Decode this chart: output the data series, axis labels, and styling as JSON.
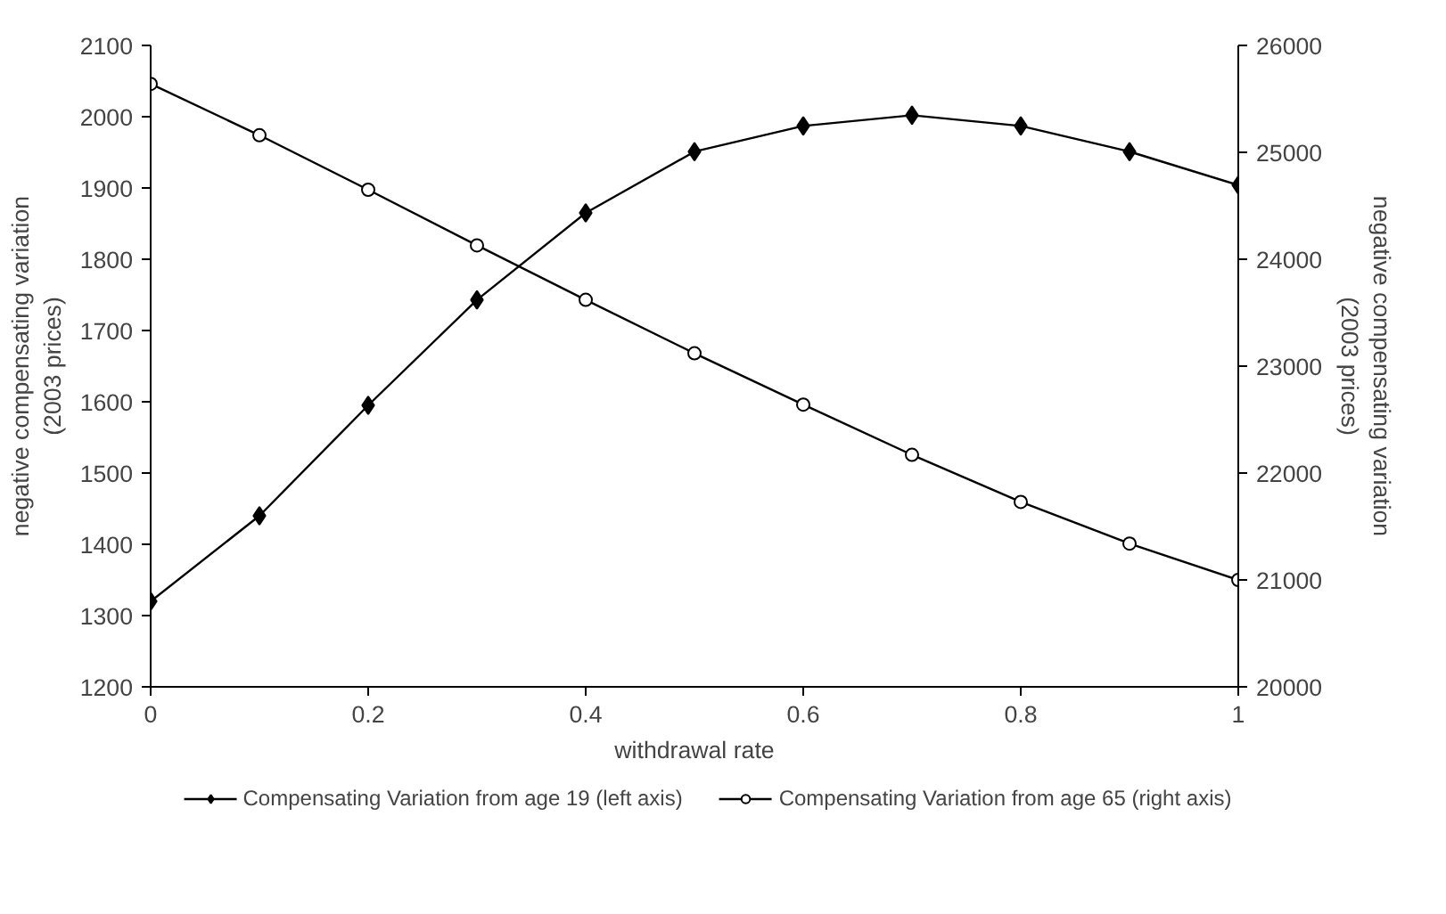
{
  "chart_data": {
    "type": "line",
    "xlabel": "withdrawal rate",
    "ylabel": "negative compensating variation\n(2003 prices)",
    "y2label": "negative compensating variation\n(2003 prices)",
    "x": [
      0,
      0.1,
      0.2,
      0.3,
      0.4,
      0.5,
      0.6,
      0.7,
      0.8,
      0.9,
      1
    ],
    "series": [
      {
        "name": "Compensating Variation from age 19 (left axis)",
        "color": "#000000",
        "marker": "diamond",
        "values": [
          1320,
          1440,
          1595,
          1743,
          1865,
          1951,
          1987,
          2002,
          1987,
          1951,
          1904
        ]
      },
      {
        "name": "Compensating Variation from age 65 (right axis)",
        "color": "#000000",
        "marker": "circle",
        "axis": "y2",
        "values": [
          25640,
          25160,
          24650,
          24130,
          23620,
          23120,
          22640,
          22170,
          21730,
          21340,
          21000
        ]
      }
    ],
    "xlim": [
      0,
      1
    ],
    "xticks": [
      0,
      0.2,
      0.4,
      0.6,
      0.8,
      1
    ],
    "ylim": [
      1200,
      2100
    ],
    "yticks": [
      1200,
      1300,
      1400,
      1500,
      1600,
      1700,
      1800,
      1900,
      2000,
      2100
    ],
    "y2lim": [
      20000,
      26000
    ],
    "y2ticks": [
      20000,
      21000,
      22000,
      23000,
      24000,
      25000,
      26000
    ],
    "grid": false,
    "legend": "bottom",
    "line_style": "solid"
  }
}
